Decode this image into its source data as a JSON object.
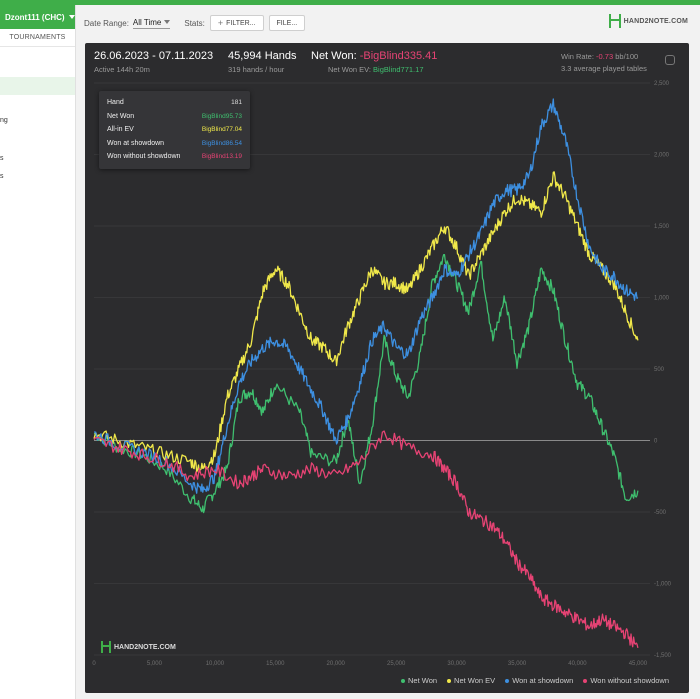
{
  "sidebar": {
    "account": "Dzont111 (CHC)",
    "tab": "TOURNAMENTS",
    "fragments": [
      "ng",
      "s",
      "s"
    ]
  },
  "header": {
    "date_range_label": "Date Range:",
    "date_range_value": "All Time",
    "stats_label": "Stats:",
    "filter_button": "FILTER...",
    "file_button": "FILE...",
    "logo_text": "HAND2NOTE.COM"
  },
  "summary": {
    "dates": "26.06.2023 - 07.11.2023",
    "active": "Active 144h 20m",
    "hands": "45,994 Hands",
    "hands_rate": "319 hands / hour",
    "net_won_label": "Net Won:",
    "net_won_value": "-BigBlind335.41",
    "ev_label": "Net Won  EV:",
    "ev_value": "BigBlind771.17",
    "win_rate_label": "Win Rate:",
    "win_rate_value": "-0.73",
    "win_rate_unit": "bb/100",
    "tables": "3.3 average played tables"
  },
  "tooltip": {
    "rows": [
      {
        "label": "Hand",
        "value": "181",
        "color": "#dddddd"
      },
      {
        "label": "Net Won",
        "value": "BigBlind95.73",
        "color": "#3fbf6f"
      },
      {
        "label": "All-in EV",
        "value": "BigBlind77.04",
        "color": "#f0e84a"
      },
      {
        "label": "Won at showdown",
        "value": "BigBlind86.54",
        "color": "#3d8fe0"
      },
      {
        "label": "Won without showdown",
        "value": "BigBlind13.19",
        "color": "#e64374"
      }
    ]
  },
  "watermark": "HAND2NOTE.COM",
  "chart_data": {
    "type": "line",
    "xlim": [
      0,
      46000
    ],
    "ylim": [
      -1500,
      2500
    ],
    "x_ticks": [
      "0",
      "5,000",
      "10,000",
      "15,000",
      "20,000",
      "25,000",
      "30,000",
      "35,000",
      "40,000",
      "45,000"
    ],
    "y_ticks": [
      "2,500",
      "2,000",
      "1,500",
      "1,000",
      "500",
      "0",
      "-500",
      "-1,000",
      "-1,500"
    ],
    "grid": true,
    "legend_position": "bottom-right",
    "series": [
      {
        "name": "Net Won",
        "color": "#3fbf6f",
        "x": [
          0,
          2000,
          4000,
          6000,
          8000,
          9000,
          10000,
          11000,
          12000,
          13000,
          14000,
          15000,
          17000,
          18000,
          20000,
          21000,
          22000,
          23000,
          24000,
          25000,
          26000,
          27000,
          28000,
          29000,
          30000,
          31000,
          32000,
          33000,
          34000,
          35000,
          36000,
          37000,
          38000,
          39000,
          40000,
          41000,
          42000,
          43000,
          44000,
          45000
        ],
        "y": [
          50,
          -50,
          -100,
          -200,
          -400,
          -480,
          -350,
          -200,
          300,
          350,
          200,
          400,
          200,
          -100,
          -150,
          150,
          -300,
          100,
          700,
          450,
          300,
          600,
          1100,
          1300,
          1100,
          900,
          1250,
          700,
          1000,
          550,
          800,
          1200,
          1050,
          700,
          400,
          300,
          100,
          -100,
          -400,
          -350
        ]
      },
      {
        "name": "Net Won  EV",
        "color": "#f0e84a",
        "x": [
          0,
          2000,
          4000,
          6000,
          8000,
          9000,
          10000,
          11000,
          12000,
          13000,
          14000,
          15000,
          16000,
          17000,
          18000,
          19000,
          20000,
          21000,
          22000,
          23000,
          24000,
          25000,
          26000,
          27000,
          28000,
          29000,
          30000,
          31000,
          32000,
          33000,
          34000,
          35000,
          36000,
          37000,
          38000,
          39000,
          40000,
          41000,
          42000,
          43000,
          44000,
          45000
        ],
        "y": [
          50,
          0,
          -50,
          -100,
          -150,
          -200,
          -100,
          300,
          500,
          700,
          1050,
          1200,
          1100,
          900,
          700,
          650,
          550,
          800,
          1000,
          1200,
          1100,
          1100,
          1050,
          1200,
          1350,
          1500,
          1350,
          1150,
          1300,
          1450,
          1600,
          1700,
          1650,
          1600,
          1850,
          1700,
          1500,
          1300,
          1200,
          1100,
          900,
          700
        ]
      },
      {
        "name": "Won at showdown",
        "color": "#3d8fe0",
        "x": [
          0,
          2000,
          4000,
          6000,
          8000,
          9000,
          10000,
          11000,
          12000,
          13000,
          14000,
          15000,
          16000,
          17000,
          18000,
          19000,
          20000,
          21000,
          22000,
          23000,
          24000,
          25000,
          26000,
          27000,
          28000,
          29000,
          30000,
          31000,
          32000,
          33000,
          34000,
          35000,
          36000,
          37000,
          38000,
          39000,
          40000,
          41000,
          42000,
          43000,
          44000,
          45000
        ],
        "y": [
          50,
          -30,
          -80,
          -150,
          -300,
          -350,
          -250,
          100,
          400,
          550,
          650,
          700,
          650,
          500,
          350,
          200,
          0,
          150,
          400,
          700,
          800,
          650,
          600,
          850,
          1000,
          1200,
          1150,
          1300,
          1450,
          1650,
          1750,
          1750,
          1850,
          2200,
          2350,
          2100,
          1700,
          1350,
          1200,
          1150,
          1050,
          1000
        ]
      },
      {
        "name": "Won without showdown",
        "color": "#e64374",
        "x": [
          0,
          2000,
          4000,
          6000,
          8000,
          10000,
          12000,
          13000,
          14000,
          16000,
          18000,
          20000,
          22000,
          24000,
          26000,
          28000,
          29000,
          30000,
          31000,
          32000,
          33000,
          34000,
          35000,
          36000,
          37000,
          38000,
          39000,
          40000,
          41000,
          42000,
          43000,
          44000,
          45000
        ],
        "y": [
          0,
          -50,
          -100,
          -150,
          -250,
          -200,
          -300,
          -250,
          -200,
          -250,
          -200,
          -250,
          -150,
          50,
          -50,
          -100,
          -200,
          -300,
          -500,
          -550,
          -600,
          -700,
          -850,
          -950,
          -1100,
          -1150,
          -1200,
          -1250,
          -1300,
          -1250,
          -1300,
          -1350,
          -1450
        ]
      }
    ]
  }
}
